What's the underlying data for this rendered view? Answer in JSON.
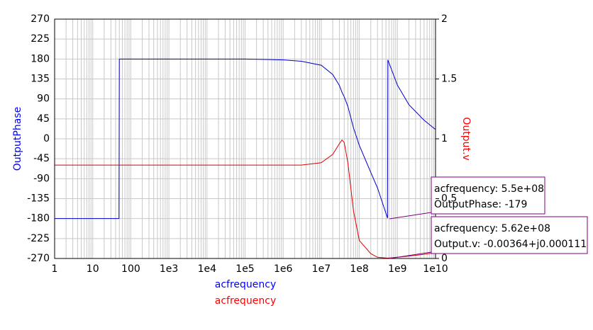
{
  "chart_data": {
    "type": "line",
    "x_labels": [
      {
        "text": "acfrequency",
        "color": "#0000ff"
      },
      {
        "text": "acfrequency",
        "color": "#ff0000"
      }
    ],
    "ylabel": "OutputPhase",
    "y2label": "Output.v",
    "log_x": true,
    "grid": true,
    "minor_grid": true,
    "xlim": [
      1,
      10000000000
    ],
    "xticks": [
      1,
      10,
      100,
      {
        "value": 1000,
        "label": "1e3"
      },
      {
        "value": 10000,
        "label": "1e4"
      },
      {
        "value": 100000,
        "label": "1e5"
      },
      {
        "value": 1000000,
        "label": "1e6"
      },
      {
        "value": 10000000,
        "label": "1e7"
      },
      {
        "value": 100000000,
        "label": "1e8"
      },
      {
        "value": 1000000000,
        "label": "1e9"
      },
      {
        "value": 10000000000,
        "label": "1e10"
      }
    ],
    "ylim": [
      -270,
      270
    ],
    "yticks": [
      270,
      225,
      180,
      135,
      90,
      45,
      0,
      -45,
      -90,
      -135,
      -180,
      -225,
      -270
    ],
    "y2lim": [
      0,
      2
    ],
    "y2ticks": [
      2,
      1.5,
      1,
      0.5,
      0
    ],
    "x": [
      1,
      10,
      49,
      50,
      100,
      1000,
      10000,
      100000,
      1000000,
      3000000,
      10000000,
      20000000,
      30000000,
      35000000,
      40000000,
      50000000,
      70000000,
      100000000,
      200000000,
      300000000,
      550000000,
      560000000,
      1000000000,
      2000000000,
      5000000000,
      10000000000
    ],
    "series": [
      {
        "name": "OutputPhase",
        "color": "#0000cc",
        "values": [
          -180,
          -180,
          -180,
          180,
          180,
          180,
          180,
          180,
          178,
          175,
          166,
          145,
          120,
          105,
          95,
          73,
          25,
          -15,
          -76,
          -111,
          -179,
          178,
          121,
          77,
          42,
          21
        ]
      },
      {
        "name": "Output.v",
        "color": "#dd0000",
        "axis": "y2",
        "values": [
          0.78,
          0.78,
          0.78,
          0.78,
          0.78,
          0.78,
          0.78,
          0.78,
          0.78,
          0.78,
          0.8,
          0.87,
          0.96,
          0.99,
          0.97,
          0.8,
          0.4,
          0.15,
          0.04,
          0.01,
          0.003,
          0.003,
          0.01,
          0.02,
          0.035,
          0.05
        ]
      }
    ],
    "markers": [
      {
        "lines": [
          "acfrequency: 5.5e+08",
          "OutputPhase: -179"
        ]
      },
      {
        "lines": [
          "acfrequency: 5.62e+08",
          "Output.v: -0.00364+j0.000111"
        ]
      }
    ]
  }
}
